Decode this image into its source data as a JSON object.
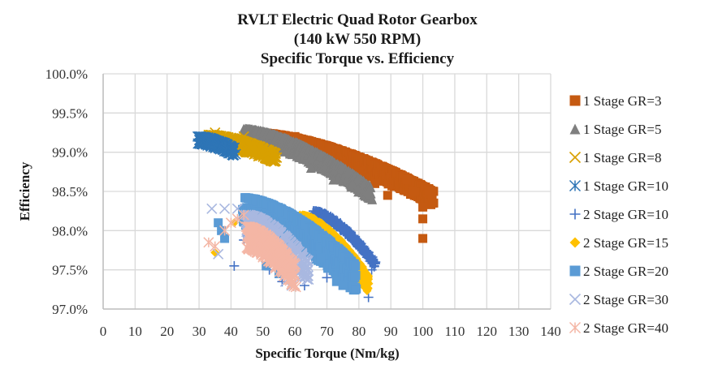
{
  "chart_data": {
    "type": "scatter",
    "title": [
      "RVLT Electric Quad Rotor Gearbox",
      "(140 kW 550 RPM)",
      "Specific Torque vs. Efficiency"
    ],
    "xlabel": "Specific Torque (Nm/kg)",
    "ylabel": "Efficiency",
    "xlim": [
      0,
      140
    ],
    "ylim": [
      97.0,
      100.0
    ],
    "xticks": [
      0,
      10,
      20,
      30,
      40,
      50,
      60,
      70,
      80,
      90,
      100,
      110,
      120,
      130,
      140
    ],
    "yticks": [
      97.0,
      97.5,
      98.0,
      98.5,
      99.0,
      99.5,
      100.0
    ],
    "ytick_labels": [
      "97.0%",
      "97.5%",
      "98.0%",
      "98.5%",
      "99.0%",
      "99.5%",
      "100.0%"
    ],
    "grid": true,
    "legend_position": "right",
    "series": [
      {
        "name": "1 Stage GR=3",
        "marker": "square",
        "color": "#C55A11",
        "band": {
          "x0": 48,
          "x1": 103,
          "ytop0": 99.25,
          "ytop1": 98.5,
          "thick": 0.18
        },
        "extra": [
          [
            60,
            99.2
          ],
          [
            70,
            98.95
          ],
          [
            75,
            98.85
          ],
          [
            80,
            98.75
          ],
          [
            85,
            98.6
          ],
          [
            89,
            98.45
          ],
          [
            95,
            98.65
          ],
          [
            100,
            98.3
          ],
          [
            100,
            98.15
          ],
          [
            100,
            97.9
          ],
          [
            102,
            98.5
          ],
          [
            97,
            98.5
          ]
        ]
      },
      {
        "name": "1 Stage GR=5",
        "marker": "triangle",
        "color": "#7F7F7F",
        "band": {
          "x0": 44,
          "x1": 84,
          "ytop0": 99.3,
          "ytop1": 98.55,
          "thick": 0.17
        },
        "extra": [
          [
            65,
            98.8
          ],
          [
            72,
            98.65
          ],
          [
            78,
            98.6
          ]
        ]
      },
      {
        "name": "1 Stage GR=8",
        "marker": "x",
        "color": "#D8A000",
        "band": {
          "x0": 33,
          "x1": 54,
          "ytop0": 99.22,
          "ytop1": 98.98,
          "thick": 0.12
        },
        "extra": [
          [
            35,
            99.25
          ],
          [
            42,
            99.0
          ],
          [
            44,
            99.2
          ]
        ]
      },
      {
        "name": "1 Stage GR=10",
        "marker": "asterisk",
        "color": "#2E75B6",
        "band": {
          "x0": 30,
          "x1": 41,
          "ytop0": 99.2,
          "ytop1": 99.05,
          "thick": 0.1
        },
        "extra": []
      },
      {
        "name": "2 Stage GR=10",
        "marker": "plus",
        "color": "#4472C4",
        "band": {
          "x0": 66,
          "x1": 85,
          "ytop0": 98.25,
          "ytop1": 97.6,
          "thick": 0.06
        },
        "extra": [
          [
            41,
            97.55
          ],
          [
            44,
            97.88
          ],
          [
            48,
            97.85
          ],
          [
            52,
            97.5
          ],
          [
            56,
            97.35
          ],
          [
            63,
            97.3
          ],
          [
            70,
            97.4
          ],
          [
            83,
            97.15
          ],
          [
            78,
            97.55
          ],
          [
            84,
            97.5
          ]
        ]
      },
      {
        "name": "2 Stage GR=15",
        "marker": "diamond",
        "color": "#FFC000",
        "band": {
          "x0": 62,
          "x1": 83,
          "ytop0": 98.2,
          "ytop1": 97.4,
          "thick": 0.18
        },
        "extra": [
          [
            35,
            97.72
          ],
          [
            41,
            98.1
          ],
          [
            66,
            97.75
          ],
          [
            80,
            97.4
          ],
          [
            83,
            97.38
          ]
        ]
      },
      {
        "name": "2 Stage GR=20",
        "marker": "square",
        "color": "#5B9BD5",
        "band": {
          "x0": 44,
          "x1": 79,
          "ytop0": 98.42,
          "ytop1": 97.55,
          "thick": 0.35
        },
        "extra": [
          [
            36,
            98.1
          ],
          [
            37,
            98.0
          ],
          [
            38,
            97.9
          ],
          [
            51,
            97.55
          ],
          [
            55,
            97.45
          ],
          [
            73,
            97.35
          ],
          [
            75,
            97.3
          ],
          [
            68,
            97.65
          ]
        ]
      },
      {
        "name": "2 Stage GR=30",
        "marker": "x",
        "color": "#A9B8E0",
        "band": {
          "x0": 45,
          "x1": 64,
          "ytop0": 98.2,
          "ytop1": 97.6,
          "thick": 0.25
        },
        "extra": [
          [
            34,
            98.28
          ],
          [
            38,
            98.28
          ],
          [
            42,
            98.28
          ],
          [
            36,
            97.7
          ],
          [
            57,
            97.35
          ],
          [
            59,
            97.3
          ],
          [
            61,
            97.45
          ],
          [
            64,
            97.55
          ]
        ]
      },
      {
        "name": "2 Stage GR=40",
        "marker": "asterisk",
        "color": "#F4B6A5",
        "band": {
          "x0": 45,
          "x1": 60,
          "ytop0": 98.05,
          "ytop1": 97.55,
          "thick": 0.3
        },
        "extra": [
          [
            33,
            97.85
          ],
          [
            35,
            97.8
          ],
          [
            38,
            98.0
          ],
          [
            40,
            98.1
          ],
          [
            42,
            98.15
          ],
          [
            44,
            98.2
          ]
        ]
      }
    ]
  }
}
